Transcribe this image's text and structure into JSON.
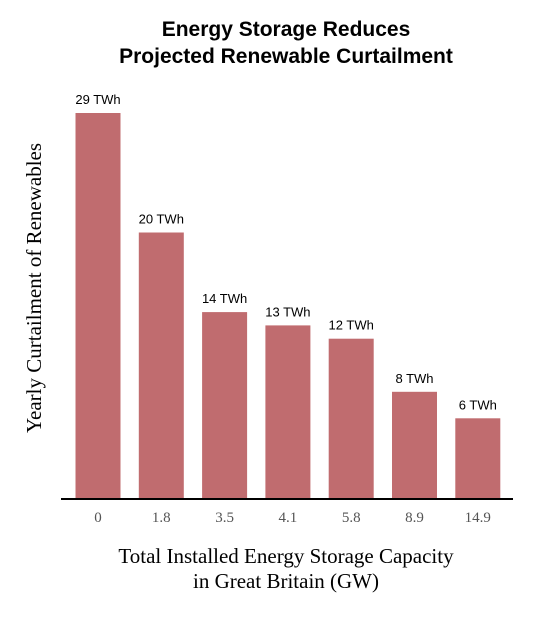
{
  "colors": {
    "bar": "#c06c6f",
    "axis": "#000000"
  },
  "chart_data": {
    "type": "bar",
    "title": "Energy Storage Reduces Projected Renewable Curtailment",
    "title_lines": [
      "Energy Storage Reduces",
      "Projected Renewable Curtailment"
    ],
    "xlabel": "Total Installed Energy Storage Capacity in Great Britain (GW)",
    "xlabel_lines": [
      "Total Installed Energy Storage Capacity",
      "in Great Britain (GW)"
    ],
    "ylabel": "Yearly Curtailment of Renewables",
    "categories": [
      "0",
      "1.8",
      "3.5",
      "4.1",
      "5.8",
      "8.9",
      "14.9"
    ],
    "values": [
      29,
      20,
      14,
      13,
      12,
      8,
      6
    ],
    "data_labels": [
      "29 TWh",
      "20 TWh",
      "14 TWh",
      "13 TWh",
      "12 TWh",
      "8 TWh",
      "6 TWh"
    ],
    "ylim": [
      0,
      29
    ],
    "grid": false,
    "legend": "none"
  }
}
